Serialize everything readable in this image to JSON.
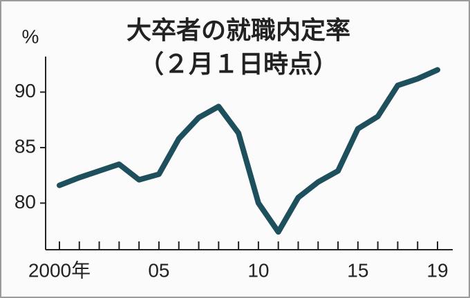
{
  "chart_data": {
    "type": "line",
    "title": "大卒者の就職内定率",
    "subtitle": "（２月１日時点）",
    "y_label": "%",
    "categories": [
      "2000年",
      null,
      null,
      null,
      null,
      "05",
      null,
      null,
      null,
      null,
      "10",
      null,
      null,
      null,
      null,
      "15",
      null,
      null,
      null,
      "19"
    ],
    "series": [
      {
        "name": "就職内定率",
        "color": "#1d4f5c",
        "values": [
          81.6,
          82.3,
          82.9,
          83.5,
          82.1,
          82.6,
          85.8,
          87.7,
          88.7,
          86.3,
          80.0,
          77.4,
          80.5,
          81.9,
          82.9,
          86.7,
          87.8,
          90.6,
          91.2,
          92.0
        ]
      }
    ],
    "ylim": [
      75.8,
      93.2
    ],
    "yticks": [
      80,
      85,
      90
    ],
    "grid": false
  }
}
